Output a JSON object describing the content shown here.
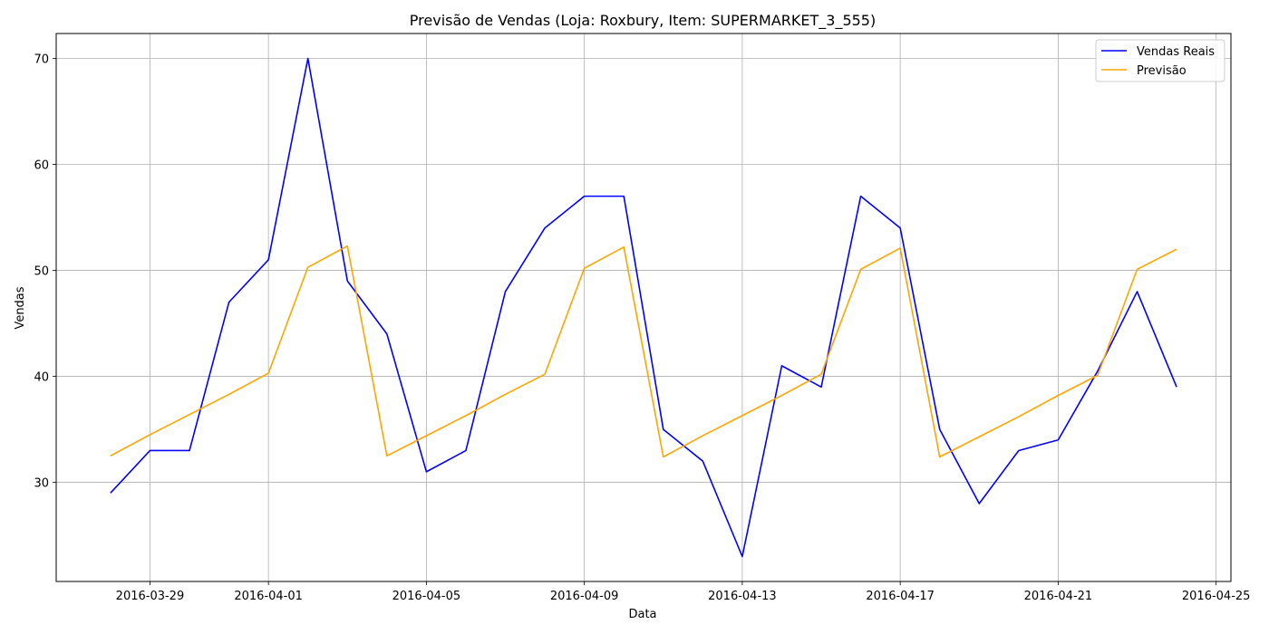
{
  "chart_data": {
    "type": "line",
    "title": "Previsão de Vendas (Loja: Roxbury, Item: SUPERMARKET_3_555)",
    "xlabel": "Data",
    "ylabel": "Vendas",
    "x": [
      "2016-03-28",
      "2016-03-29",
      "2016-03-30",
      "2016-03-31",
      "2016-04-01",
      "2016-04-02",
      "2016-04-03",
      "2016-04-04",
      "2016-04-05",
      "2016-04-06",
      "2016-04-07",
      "2016-04-08",
      "2016-04-09",
      "2016-04-10",
      "2016-04-11",
      "2016-04-12",
      "2016-04-13",
      "2016-04-14",
      "2016-04-15",
      "2016-04-16",
      "2016-04-17",
      "2016-04-18",
      "2016-04-19",
      "2016-04-20",
      "2016-04-21",
      "2016-04-22",
      "2016-04-23",
      "2016-04-24"
    ],
    "series": [
      {
        "name": "Vendas Reais",
        "color": "#0000ff",
        "values": [
          29,
          33,
          33,
          47,
          51,
          70,
          49,
          44,
          31,
          33,
          48,
          54,
          57,
          57,
          35,
          32,
          23,
          41,
          39,
          57,
          54,
          35,
          28,
          33,
          34,
          40.5,
          48,
          39
        ]
      },
      {
        "name": "Previsão",
        "color": "#ffa500",
        "values": [
          32.5,
          34.5,
          36.4,
          38.3,
          40.3,
          50.3,
          52.3,
          32.5,
          34.4,
          36.3,
          38.3,
          40.2,
          50.2,
          52.2,
          32.4,
          34.4,
          36.3,
          38.2,
          40.2,
          50.1,
          52.1,
          32.4,
          34.3,
          36.2,
          38.2,
          40.1,
          50.1,
          52.0
        ]
      }
    ],
    "xlim": [
      "2016-03-26T15:00",
      "2016-04-25T09:00"
    ],
    "ylim": [
      20.65,
      72.35
    ],
    "xticks": [
      "2016-03-29",
      "2016-04-01",
      "2016-04-05",
      "2016-04-09",
      "2016-04-13",
      "2016-04-17",
      "2016-04-21",
      "2016-04-25"
    ],
    "yticks": [
      30,
      40,
      50,
      60,
      70
    ],
    "grid": true,
    "legend_position": "top-right"
  }
}
